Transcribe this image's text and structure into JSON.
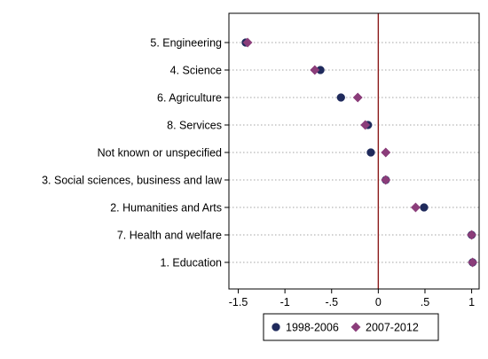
{
  "chart_data": {
    "type": "scatter",
    "orientation": "horizontal-dot",
    "title": "",
    "xlabel": "",
    "ylabel": "",
    "categories": [
      "5. Engineering",
      "4. Science",
      "6. Agriculture",
      "8. Services",
      "Not known or unspecified",
      "3. Social sciences, business and law",
      "2. Humanities and Arts",
      "7. Health and welfare",
      "1. Education"
    ],
    "series": [
      {
        "name": "1998-2006",
        "color": "#1f2a5c",
        "marker": "circle",
        "values": [
          -1.42,
          -0.62,
          -0.4,
          -0.11,
          -0.08,
          0.08,
          0.49,
          1.0,
          1.01
        ]
      },
      {
        "name": "2007-2012",
        "color": "#8b3d7a",
        "marker": "diamond",
        "values": [
          -1.4,
          -0.68,
          -0.22,
          -0.14,
          0.08,
          0.08,
          0.4,
          1.0,
          1.01
        ]
      }
    ],
    "xlim": [
      -1.6,
      1.08
    ],
    "xticks": [
      -1.5,
      -1,
      -0.5,
      0,
      0.5,
      1
    ],
    "xtick_labels": [
      "-1.5",
      "-1",
      "-.5",
      "0",
      ".5",
      "1"
    ],
    "reference_line": {
      "x": 0,
      "color": "#8b1a1a"
    },
    "grid": "horizontal dotted",
    "legend_position": "bottom",
    "colors": {
      "plot_border": "#000000",
      "grid": "#888888",
      "legend_border": "#000000"
    }
  }
}
